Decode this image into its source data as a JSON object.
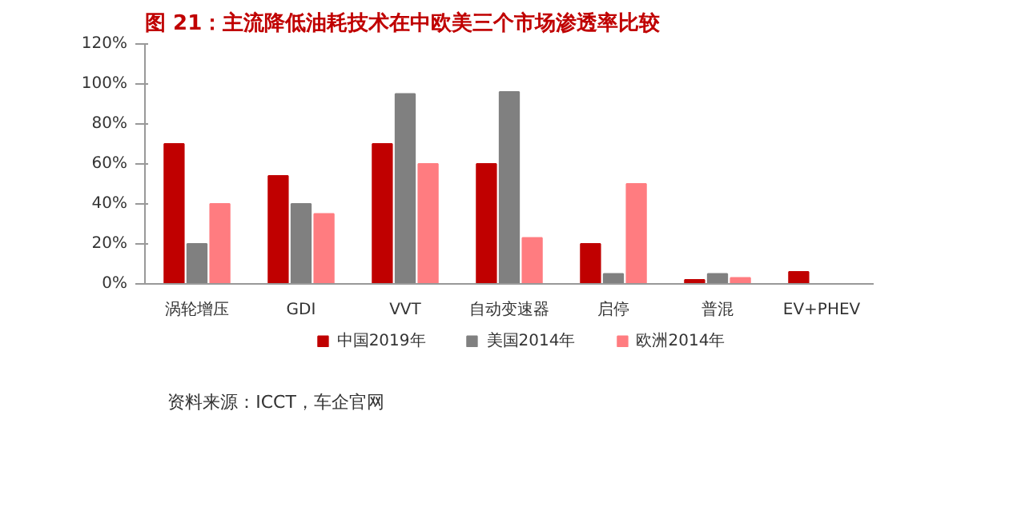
{
  "chart_data": {
    "type": "bar",
    "title": "图 21：主流降低油耗技术在中欧美三个市场渗透率比较",
    "categories": [
      "涡轮增压",
      "GDI",
      "VVT",
      "自动变速器",
      "启停",
      "普混",
      "EV+PHEV"
    ],
    "series": [
      {
        "name": "中国2019年",
        "color": "#c00000",
        "values": [
          70,
          54,
          70,
          60,
          20,
          2,
          6
        ]
      },
      {
        "name": "美国2014年",
        "color": "#808080",
        "values": [
          20,
          40,
          95,
          96,
          5,
          5,
          null
        ]
      },
      {
        "name": "欧洲2014年",
        "color": "#ff7c80",
        "values": [
          40,
          35,
          60,
          23,
          50,
          3,
          null
        ]
      }
    ],
    "ylim": [
      0,
      120
    ],
    "yticks": [
      {
        "value": 0,
        "label": "0%"
      },
      {
        "value": 20,
        "label": "20%"
      },
      {
        "value": 40,
        "label": "40%"
      },
      {
        "value": 60,
        "label": "60%"
      },
      {
        "value": 80,
        "label": "80%"
      },
      {
        "value": 100,
        "label": "100%"
      },
      {
        "value": 120,
        "label": "120%"
      }
    ],
    "grid": false,
    "legend": "bottom",
    "annotations": [
      "资料来源：ICCT，车企官网"
    ]
  }
}
